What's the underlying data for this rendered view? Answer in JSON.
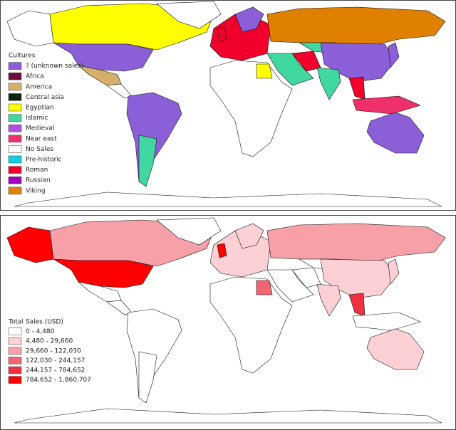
{
  "culture_map": {
    "legend": {
      "title": "Cultures",
      "items": [
        {
          "label": "? (unknown sales)",
          "color": "#8b5fd8"
        },
        {
          "label": "Africa",
          "color": "#6b0f3a"
        },
        {
          "label": "America",
          "color": "#d4b06a"
        },
        {
          "label": "Central asia",
          "color": "#102010"
        },
        {
          "label": "Egyptian",
          "color": "#ffff00"
        },
        {
          "label": "Islamic",
          "color": "#40d8a0"
        },
        {
          "label": "Medieval",
          "color": "#b050e0"
        },
        {
          "label": "Near east",
          "color": "#f0306a"
        },
        {
          "label": "No Sales",
          "color": "#ffffff"
        },
        {
          "label": "Pre-historic",
          "color": "#10d0e0"
        },
        {
          "label": "Roman",
          "color": "#f0002a"
        },
        {
          "label": "Russian",
          "color": "#a000c0"
        },
        {
          "label": "Viking",
          "color": "#e08000"
        }
      ]
    }
  },
  "sales_map": {
    "legend": {
      "title": "Total Sales (USD)",
      "items": [
        {
          "label": "0 - 4,480",
          "color": "#ffffff"
        },
        {
          "label": "4,480 - 29,660",
          "color": "#fcd0d4"
        },
        {
          "label": "29,660 - 122,030",
          "color": "#f8a0a8"
        },
        {
          "label": "122,030 - 244,157",
          "color": "#f06670"
        },
        {
          "label": "244,157 - 784,652",
          "color": "#f03040"
        },
        {
          "label": "784,652 - 1,860,707",
          "color": "#ff0000"
        }
      ]
    }
  }
}
